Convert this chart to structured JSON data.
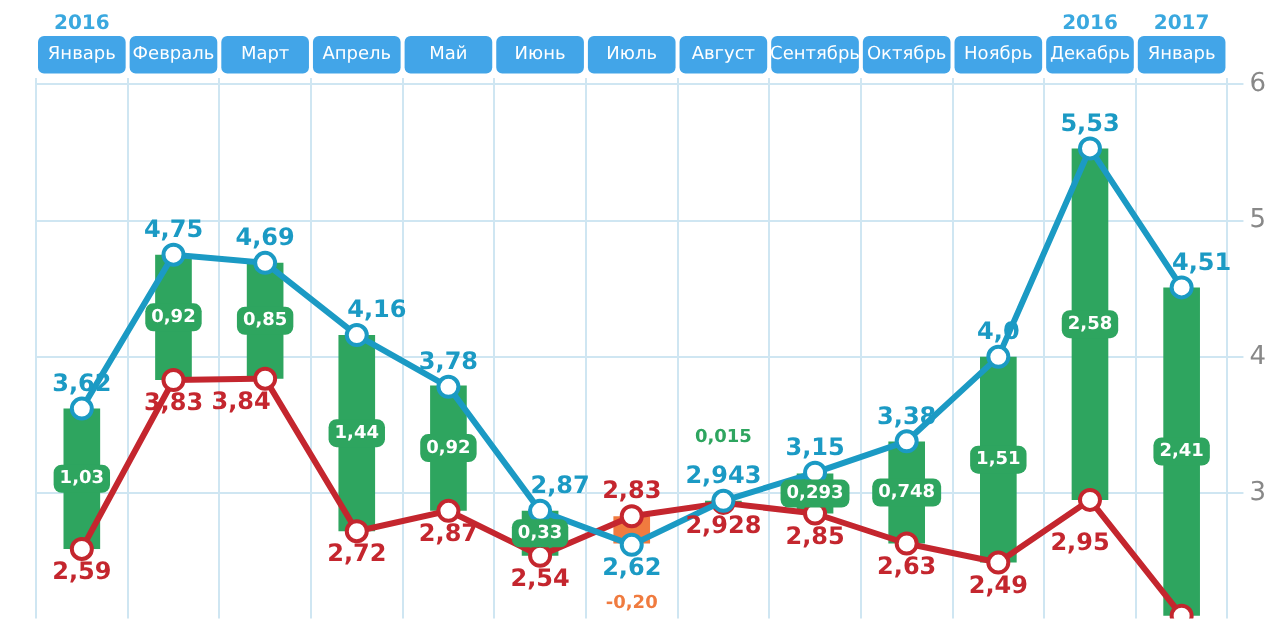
{
  "chart_data": {
    "type": "line",
    "categories": [
      "Январь",
      "Февраль",
      "Март",
      "Апрель",
      "Май",
      "Июнь",
      "Июль",
      "Август",
      "Сентябрь",
      "Октябрь",
      "Ноябрь",
      "Декабрь",
      "Январь"
    ],
    "series": [
      {
        "type": "bar",
        "color": "#2ea55f",
        "colors": [
          "#2ea55f",
          "#2ea55f",
          "#2ea55f",
          "#2ea55f",
          "#2ea55f",
          "#2ea55f",
          "#f07b3f",
          "#2ea55f",
          "#2ea55f",
          "#2ea55f",
          "#2ea55f",
          "#2ea55f",
          "#2ea55f"
        ],
        "base": [
          2.59,
          3.83,
          3.84,
          2.72,
          2.87,
          2.54,
          2.83,
          2.928,
          2.85,
          2.63,
          2.49,
          2.95,
          2.1
        ],
        "values": [
          1.03,
          0.92,
          0.85,
          1.44,
          0.92,
          0.33,
          -0.2,
          0.015,
          0.293,
          0.748,
          1.51,
          2.58,
          2.41
        ],
        "value_labels": [
          "1,03",
          "0,92",
          "0,85",
          "1,44",
          "0,92",
          "0,33",
          "-0,20",
          "0,015",
          "0,293",
          "0,748",
          "1,51",
          "2,58",
          "2,41"
        ]
      },
      {
        "color": "#1b9ac4",
        "values": [
          3.62,
          4.75,
          4.69,
          4.16,
          3.78,
          2.87,
          2.62,
          2.943,
          3.15,
          3.38,
          4.0,
          5.53,
          4.51
        ],
        "value_labels": [
          "3,62",
          "4,75",
          "4,69",
          "4,16",
          "3,78",
          "2,87",
          "2,62",
          "2,943",
          "3,15",
          "3,38",
          "4,0",
          "5,53",
          "4,51"
        ]
      },
      {
        "color": "#c4262e",
        "values": [
          2.59,
          3.83,
          3.84,
          2.72,
          2.87,
          2.54,
          2.83,
          2.928,
          2.85,
          2.63,
          2.49,
          2.95,
          2.1
        ],
        "value_labels": [
          "2,59",
          "3,83",
          "3,84",
          "2,72",
          "2,87",
          "2,54",
          "2,83",
          "2,928",
          "2,85",
          "2,63",
          "2,49",
          "2,95",
          null
        ]
      }
    ],
    "annotations": [
      "2016",
      "2016",
      "2017"
    ],
    "ylim": [
      2.08,
      6.05
    ],
    "yticks": [
      3,
      4,
      5,
      6
    ],
    "grid": true,
    "marker": "circle",
    "legend": false
  }
}
